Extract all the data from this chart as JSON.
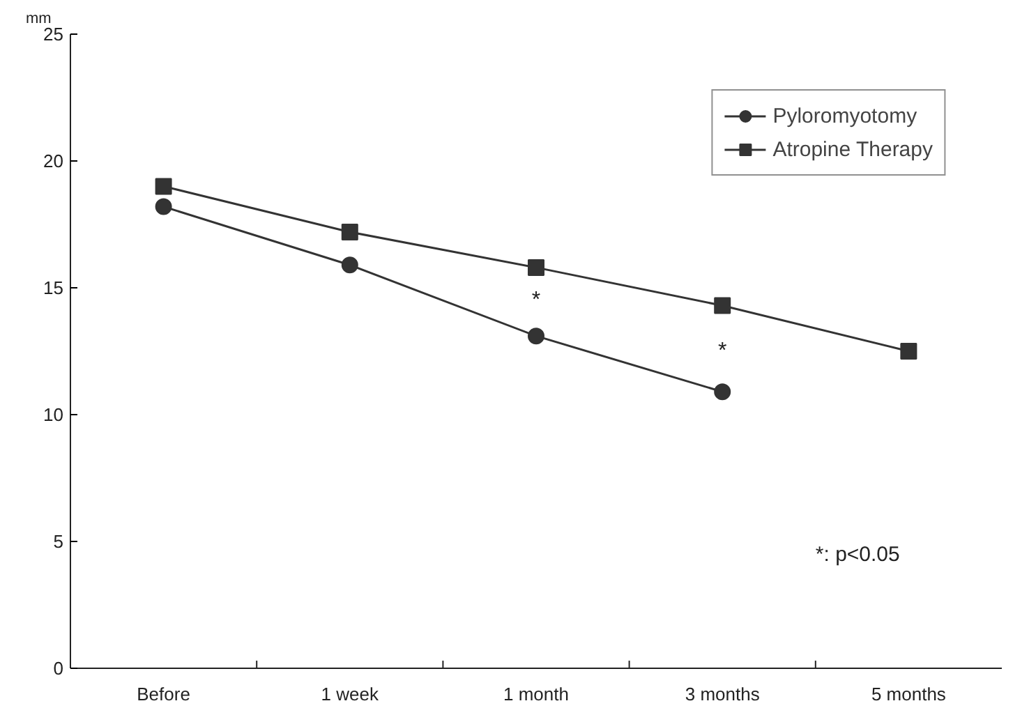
{
  "chart_data": {
    "type": "line",
    "ylabel": "mm",
    "categories": [
      "Before",
      "1 week",
      "1 month",
      "3 months",
      "5 months"
    ],
    "series": [
      {
        "name": "Pyloromyotomy",
        "color": "#333333",
        "marker": "circle",
        "values": [
          18.2,
          15.9,
          13.1,
          10.9,
          null
        ]
      },
      {
        "name": "Atropine Therapy",
        "color": "#333333",
        "marker": "square",
        "values": [
          19.0,
          17.2,
          15.8,
          14.3,
          12.5
        ]
      }
    ],
    "ylim": [
      0,
      25
    ],
    "yticks": [
      0,
      5,
      10,
      15,
      20,
      25
    ],
    "grid": false,
    "legend": "top right",
    "line_style": "solid",
    "annotations": [
      "*",
      "*",
      "*: p<0.05"
    ]
  }
}
